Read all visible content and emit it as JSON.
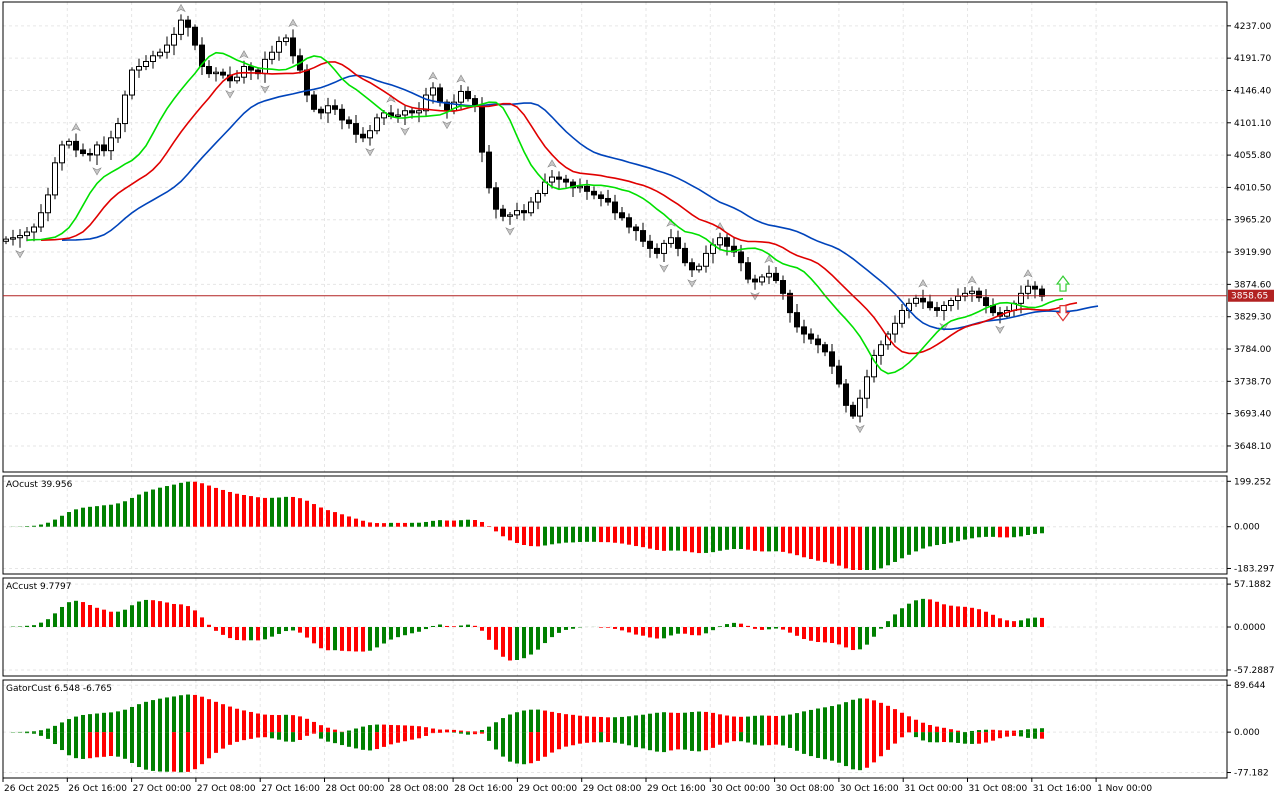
{
  "chart_data": {
    "type": "candlestick",
    "main": {
      "y_ticks": [
        "4237.00",
        "4191.70",
        "4146.40",
        "4101.10",
        "4055.80",
        "4010.50",
        "3965.20",
        "3919.90",
        "3874.60",
        "3829.30",
        "3784.00",
        "3738.70",
        "3693.40",
        "3648.10"
      ],
      "ylim": [
        3620,
        4262
      ],
      "current_price": "3858.65",
      "colors": {
        "fast": "#00e000",
        "mid": "#e00000",
        "slow": "#0044bb",
        "price_line": "#b22222",
        "candle": "#000000"
      }
    },
    "panels": [
      {
        "label": "AOcust 39.956",
        "y_ticks": [
          "199.252",
          "0.000",
          "-183.297"
        ],
        "ylim": [
          -190,
          205
        ]
      },
      {
        "label": "ACcust 9.7797",
        "y_ticks": [
          "57.1882",
          "0.0000",
          "-57.2887"
        ],
        "ylim": [
          -60,
          60
        ]
      },
      {
        "label": "GatorCust 6.548 -6.765",
        "y_ticks": [
          "89.644",
          "0.000",
          "-77.182"
        ],
        "ylim": [
          -80,
          92
        ]
      }
    ],
    "x_labels": [
      "26 Oct 2025",
      "26 Oct 16:00",
      "27 Oct 00:00",
      "27 Oct 08:00",
      "27 Oct 16:00",
      "28 Oct 00:00",
      "28 Oct 08:00",
      "28 Oct 16:00",
      "29 Oct 00:00",
      "29 Oct 08:00",
      "29 Oct 16:00",
      "30 Oct 00:00",
      "30 Oct 08:00",
      "30 Oct 16:00",
      "31 Oct 00:00",
      "31 Oct 08:00",
      "31 Oct 16:00",
      "1 Nov 00:00"
    ],
    "series_close": [
      3938,
      3940,
      3943,
      3948,
      3955,
      3975,
      4000,
      4045,
      4070,
      4075,
      4063,
      4058,
      4056,
      4070,
      4062,
      4080,
      4100,
      4140,
      4175,
      4180,
      4187,
      4195,
      4200,
      4210,
      4225,
      4245,
      4235,
      4210,
      4180,
      4170,
      4172,
      4168,
      4160,
      4165,
      4180,
      4175,
      4170,
      4190,
      4200,
      4215,
      4220,
      4195,
      4175,
      4140,
      4120,
      4115,
      4125,
      4120,
      4105,
      4100,
      4085,
      4080,
      4090,
      4108,
      4115,
      4110,
      4112,
      4118,
      4115,
      4118,
      4140,
      4150,
      4130,
      4118,
      4130,
      4145,
      4135,
      4125,
      4060,
      4010,
      3980,
      3970,
      3972,
      3978,
      3975,
      3990,
      4002,
      4018,
      4025,
      4022,
      4018,
      4010,
      4012,
      4005,
      4000,
      3995,
      3990,
      3975,
      3968,
      3955,
      3950,
      3935,
      3925,
      3918,
      3932,
      3940,
      3925,
      3905,
      3895,
      3900,
      3918,
      3930,
      3940,
      3928,
      3920,
      3905,
      3882,
      3878,
      3885,
      3890,
      3880,
      3862,
      3835,
      3815,
      3805,
      3798,
      3790,
      3780,
      3760,
      3735,
      3705,
      3690,
      3715,
      3745,
      3775,
      3790,
      3805,
      3820,
      3838,
      3848,
      3855,
      3850,
      3842,
      3838,
      3845,
      3852,
      3858,
      3862,
      3865,
      3856,
      3845,
      3835,
      3830,
      3838,
      3848,
      3862,
      3872,
      3868,
      3858
    ]
  }
}
